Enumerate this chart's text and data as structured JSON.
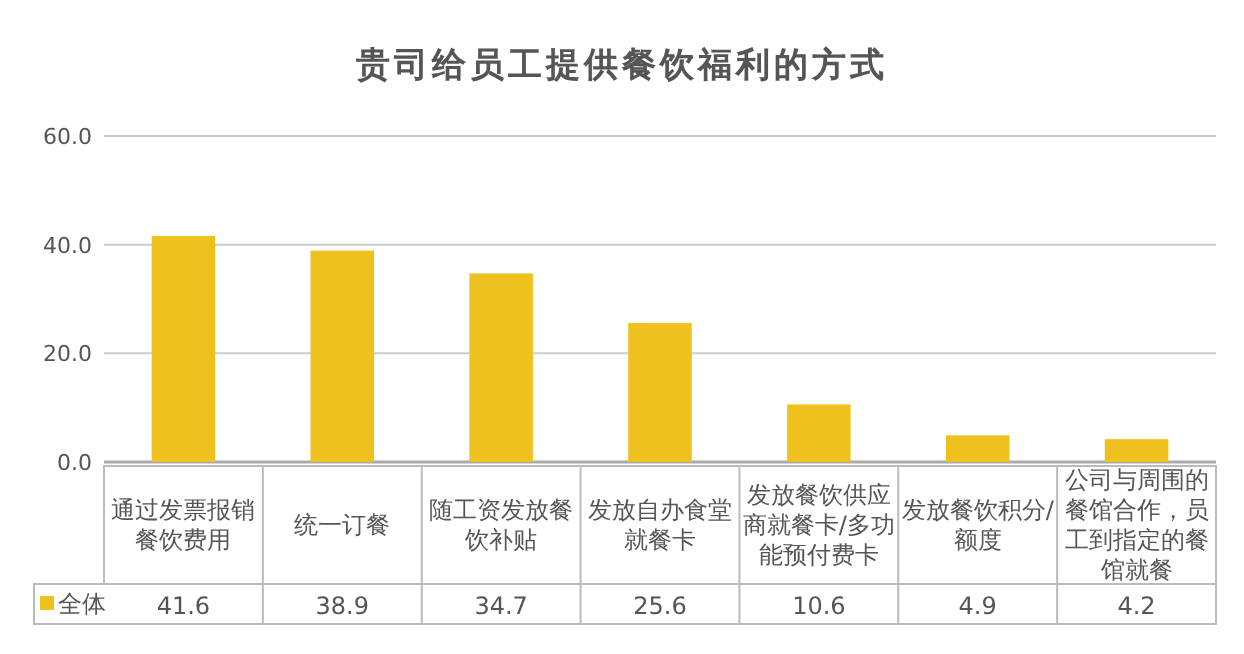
{
  "chart_data": {
    "type": "bar",
    "title": "贵司给员工提供餐饮福利的方式",
    "categories": [
      "通过发票报销餐饮费用",
      "统一订餐",
      "随工资发放餐饮补贴",
      "发放自办食堂就餐卡",
      "发放餐饮供应商就餐卡/多功能预付费卡",
      "发放餐饮积分/额度",
      "公司与周围的餐馆合作，员工到指定的餐馆就餐"
    ],
    "series": [
      {
        "name": "全体",
        "color": "#efc11f",
        "values": [
          41.6,
          38.9,
          34.7,
          25.6,
          10.6,
          4.9,
          4.2
        ]
      }
    ],
    "ylim": [
      0,
      60
    ],
    "yticks": [
      {
        "value": 0,
        "label": "0.0"
      },
      {
        "value": 20,
        "label": "20.0"
      },
      {
        "value": 40,
        "label": "40.0"
      },
      {
        "value": 60,
        "label": "60.0"
      }
    ],
    "grid": "y",
    "data_labels": true,
    "legend": "bottom left"
  }
}
